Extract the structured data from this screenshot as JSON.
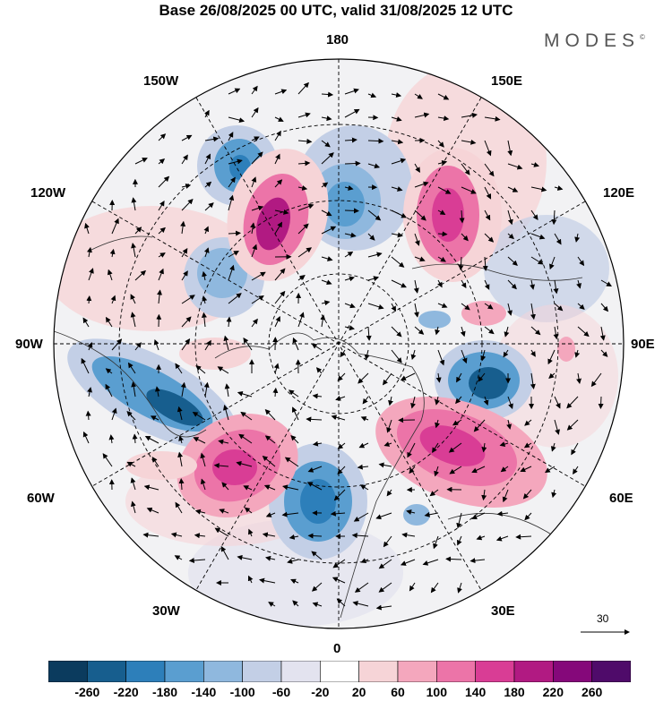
{
  "title": "Base 26/08/2025 00 UTC, valid 31/08/2025 12 UTC",
  "brand": "MODES",
  "brand_mark": "©",
  "longitude_labels": {
    "top": "180",
    "bottom": "0",
    "left": "90W",
    "right": "90E",
    "w150": "150W",
    "e150": "150E",
    "w120": "120W",
    "e120": "120E",
    "w60": "60W",
    "e60": "60E",
    "w30": "30W",
    "e30": "30E"
  },
  "vector_scale": "30",
  "colorbar": {
    "ticks": [
      "-260",
      "-220",
      "-180",
      "-140",
      "-100",
      "-60",
      "-20",
      "20",
      "60",
      "100",
      "140",
      "180",
      "220",
      "260"
    ],
    "colors": [
      "#0b3b5e",
      "#175e8e",
      "#2d7fba",
      "#5a9ed0",
      "#8fb8de",
      "#c3cfe6",
      "#e3e3ef",
      "#ffffff",
      "#f6d4d7",
      "#f4a7bd",
      "#ec74a8",
      "#d93d95",
      "#b11a82",
      "#85087a",
      "#4f0b6a"
    ]
  },
  "map_features": {
    "anomaly_highs": "pink",
    "anomaly_lows": "blue"
  }
}
